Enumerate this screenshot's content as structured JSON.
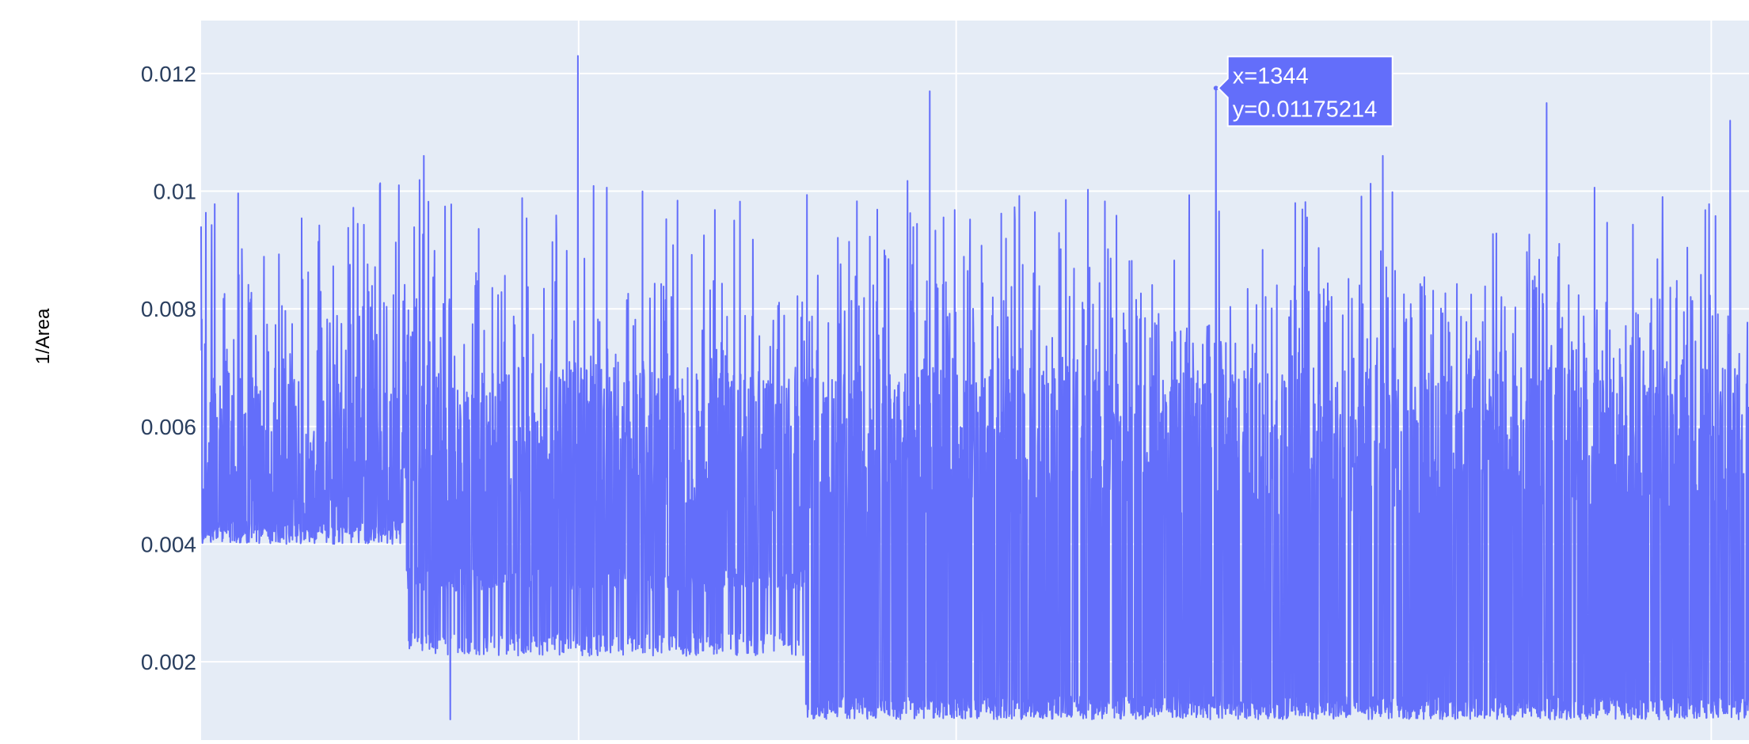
{
  "chart_data": {
    "type": "line",
    "title": "",
    "xlabel": "",
    "ylabel": "1/Area",
    "y_ticks": [
      "0.002",
      "0.004",
      "0.006",
      "0.008",
      "0.01",
      "0.012"
    ],
    "y_tick_values": [
      0.002,
      0.004,
      0.006,
      0.008,
      0.01,
      0.012
    ],
    "ylim": [
      0.00067,
      0.0129
    ],
    "xlim": [
      0,
      2050
    ],
    "x_gridlines": [
      500,
      1000,
      2000
    ],
    "grid": true,
    "legend": "none",
    "series": [
      {
        "color": "#636efa",
        "baseline_segments": [
          {
            "x_start": 0,
            "x_end": 270,
            "y_min": 0.004
          },
          {
            "x_start": 270,
            "x_end": 800,
            "y_min": 0.0032
          },
          {
            "x_start": 270,
            "x_end": 800,
            "y_min": 0.0021
          },
          {
            "x_start": 800,
            "x_end": 2050,
            "y_min": 0.00102
          }
        ],
        "notable_points": [
          {
            "x": 0,
            "y": 0.0094
          },
          {
            "x": 295,
            "y": 0.0106
          },
          {
            "x": 330,
            "y": 0.00102
          },
          {
            "x": 499,
            "y": 0.0123
          },
          {
            "x": 965,
            "y": 0.0117
          },
          {
            "x": 1344,
            "y": 0.01175214
          },
          {
            "x": 1565,
            "y": 0.0106
          },
          {
            "x": 1782,
            "y": 0.0115
          },
          {
            "x": 2025,
            "y": 0.0112
          },
          {
            "x": 2050,
            "y": 0.0086
          }
        ]
      }
    ],
    "hover": {
      "x_label": "x=1344",
      "y_label": "y=0.01175214"
    }
  },
  "colors": {
    "plot_background": "#e5ecf6",
    "grid": "#ffffff",
    "line": "#636efa",
    "tick_text": "#2a3f5f"
  }
}
